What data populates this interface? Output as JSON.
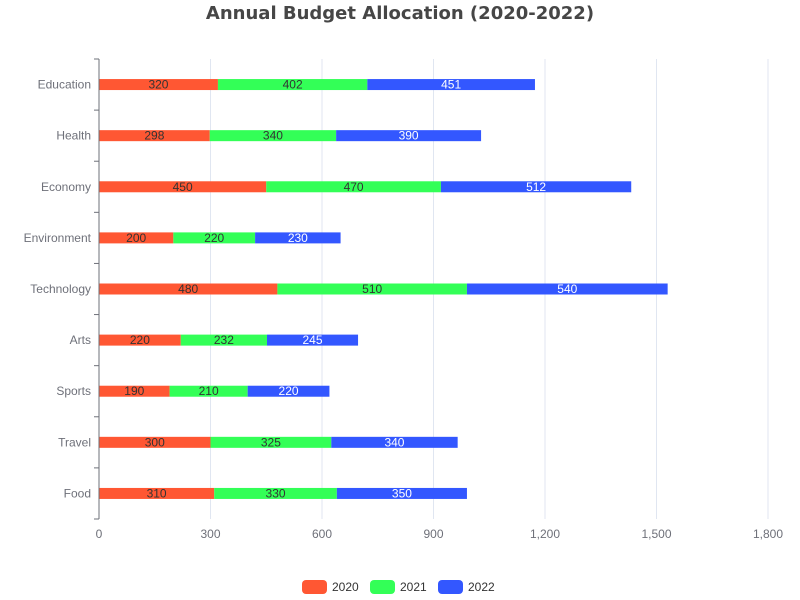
{
  "chart_data": {
    "type": "bar",
    "orientation": "horizontal",
    "stacked": true,
    "title": "Annual Budget Allocation (2020-2022)",
    "xlabel": "",
    "ylabel": "",
    "xlim": [
      0,
      1800
    ],
    "xticks": [
      0,
      300,
      600,
      900,
      1200,
      1500,
      1800
    ],
    "xtick_labels": [
      "0",
      "300",
      "600",
      "900",
      "1,200",
      "1,500",
      "1,800"
    ],
    "grid": true,
    "legend_position": "bottom",
    "categories": [
      "Food",
      "Travel",
      "Sports",
      "Arts",
      "Technology",
      "Environment",
      "Economy",
      "Health",
      "Education"
    ],
    "series": [
      {
        "name": "2020",
        "color": "#ff5733",
        "label_color": "dark",
        "values": [
          310,
          300,
          190,
          220,
          480,
          200,
          450,
          298,
          320
        ]
      },
      {
        "name": "2021",
        "color": "#33ff57",
        "label_color": "dark",
        "values": [
          330,
          325,
          210,
          232,
          510,
          220,
          470,
          340,
          402
        ]
      },
      {
        "name": "2022",
        "color": "#3357ff",
        "label_color": "light",
        "values": [
          350,
          340,
          220,
          245,
          540,
          230,
          512,
          390,
          451
        ]
      }
    ]
  }
}
